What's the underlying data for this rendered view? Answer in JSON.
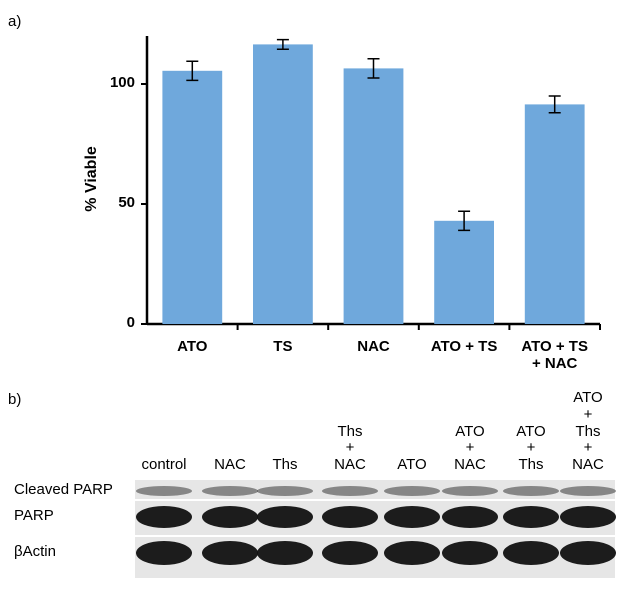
{
  "panel_a_label": "a)",
  "panel_b_label": "b)",
  "chart_data": {
    "type": "bar",
    "ylabel": "% Viable",
    "categories": [
      "ATO",
      "TS",
      "NAC",
      "ATO + TS",
      "ATO + TS\n+ NAC"
    ],
    "values": [
      105.5,
      116.5,
      106.5,
      43,
      91.5
    ],
    "errors": [
      4,
      2,
      4,
      4,
      3.5
    ],
    "color": "#6fa8dc",
    "ylim": [
      0,
      120
    ],
    "yticks": [
      0,
      50,
      100
    ],
    "grid": false
  },
  "blot": {
    "columns": [
      "control",
      "NAC",
      "Ths",
      "Ths\n+\nNAC",
      "ATO",
      "ATO\n+\nNAC",
      "ATO\n+\nThs",
      "ATO\n+\nThs\n+\nNAC"
    ],
    "rows": [
      "Cleaved PARP",
      "PARP",
      "βActin"
    ]
  }
}
